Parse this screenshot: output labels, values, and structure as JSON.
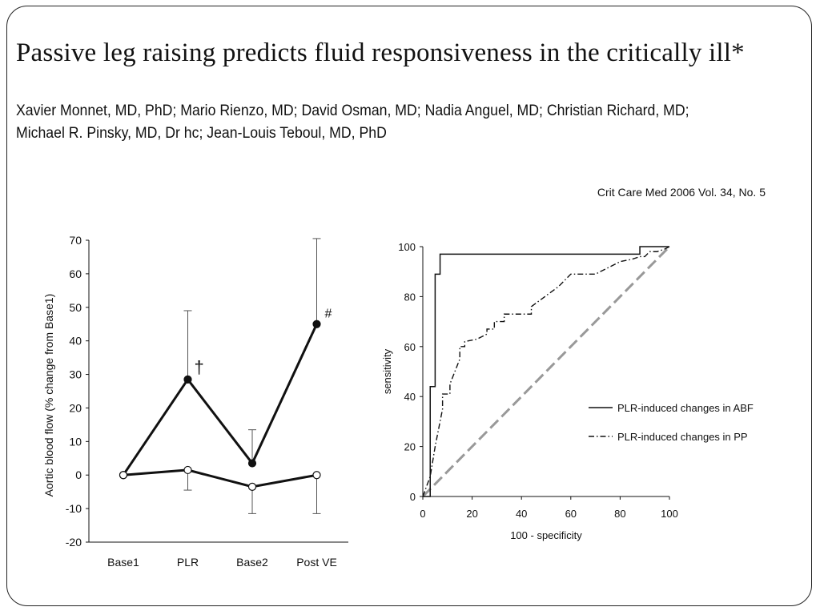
{
  "title": "Passive leg raising predicts fluid responsiveness in the critically ill*",
  "authors": {
    "line1": "Xavier Monnet, MD, PhD; Mario Rienzo, MD; David Osman, MD; Nadia Anguel, MD; Christian Richard, MD;",
    "line2": "Michael R. Pinsky, MD, Dr hc; Jean-Louis Teboul, MD, PhD"
  },
  "citation": "Crit Care Med 2006 Vol. 34, No. 5",
  "chart_data": [
    {
      "type": "line",
      "ylabel": "Aortic blood flow (% change from Base1)",
      "xlabel": "",
      "categories": [
        "Base1",
        "PLR",
        "Base2",
        "Post VE"
      ],
      "ylim": [
        -20,
        70
      ],
      "yticks": [
        70,
        60,
        50,
        40,
        30,
        20,
        10,
        0,
        -10,
        -20
      ],
      "series": [
        {
          "name": "filled markers",
          "marker": "filled",
          "values": [
            0,
            28.5,
            3.5,
            45
          ],
          "error": [
            0,
            20.5,
            10,
            25.5
          ]
        },
        {
          "name": "open markers",
          "marker": "open",
          "values": [
            0,
            1.5,
            -3.5,
            0
          ],
          "error": [
            0,
            6,
            8,
            11.5
          ]
        }
      ],
      "annotations": [
        {
          "category": "PLR",
          "text": "†"
        },
        {
          "category": "Post VE",
          "text": "#"
        }
      ]
    },
    {
      "type": "line",
      "xlabel": "100 - specificity",
      "ylabel": "sensitivity",
      "xlim": [
        0,
        100
      ],
      "ylim": [
        0,
        100
      ],
      "xticks": [
        0,
        20,
        40,
        60,
        80,
        100
      ],
      "yticks": [
        100,
        80,
        60,
        40,
        20,
        0
      ],
      "legend": [
        "PLR-induced changes in ABF",
        "PLR-induced changes in PP"
      ],
      "legend_position": "lower-right",
      "series": [
        {
          "name": "PLR-induced changes in ABF",
          "style": "solid",
          "x": [
            0,
            3,
            3,
            5,
            5,
            7,
            7,
            88,
            88,
            92,
            92,
            100
          ],
          "y": [
            0,
            0,
            44,
            44,
            89,
            89,
            97,
            97,
            100,
            100,
            100,
            100
          ]
        },
        {
          "name": "PLR-induced changes in PP",
          "style": "dash-dot",
          "x": [
            0,
            3,
            5,
            8,
            8,
            11,
            11,
            13,
            15,
            15,
            17,
            17,
            22,
            26,
            26,
            29,
            29,
            33,
            33,
            44,
            44,
            55,
            60,
            70,
            80,
            85,
            88,
            90,
            92,
            95,
            98,
            100
          ],
          "y": [
            0,
            8,
            20,
            35,
            41,
            41,
            45,
            50,
            55,
            60,
            60,
            62,
            63,
            65,
            67,
            67,
            70,
            70,
            73,
            73,
            76,
            84,
            89,
            89,
            94,
            95,
            96,
            96,
            98,
            98,
            99,
            100
          ]
        },
        {
          "name": "reference",
          "style": "dashed",
          "x": [
            0,
            100
          ],
          "y": [
            0,
            100
          ]
        }
      ]
    }
  ]
}
